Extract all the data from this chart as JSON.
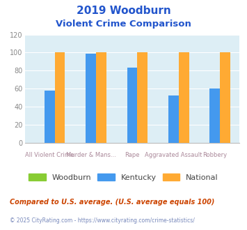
{
  "title_line1": "2019 Woodburn",
  "title_line2": "Violent Crime Comparison",
  "title_color": "#2255cc",
  "categories_top": [
    "",
    "Murder & Mans...",
    "",
    "Aggravated Assault",
    ""
  ],
  "categories_bot": [
    "All Violent Crime",
    "",
    "Rape",
    "",
    "Robbery"
  ],
  "woodburn": [
    0,
    0,
    0,
    0,
    0
  ],
  "kentucky": [
    58,
    99,
    83,
    52,
    60
  ],
  "national": [
    100,
    100,
    100,
    100,
    100
  ],
  "woodburn_color": "#88cc33",
  "kentucky_color": "#4499ee",
  "national_color": "#ffaa33",
  "ylim": [
    0,
    120
  ],
  "yticks": [
    0,
    20,
    40,
    60,
    80,
    100,
    120
  ],
  "plot_bg": "#ddeef5",
  "grid_color": "#ffffff",
  "legend_labels": [
    "Woodburn",
    "Kentucky",
    "National"
  ],
  "xlabel_color": "#aa8899",
  "ylabel_color": "#888888",
  "footnote1": "Compared to U.S. average. (U.S. average equals 100)",
  "footnote2": "© 2025 CityRating.com - https://www.cityrating.com/crime-statistics/",
  "footnote1_color": "#cc4400",
  "footnote2_color": "#7788bb",
  "bar_width": 0.25
}
